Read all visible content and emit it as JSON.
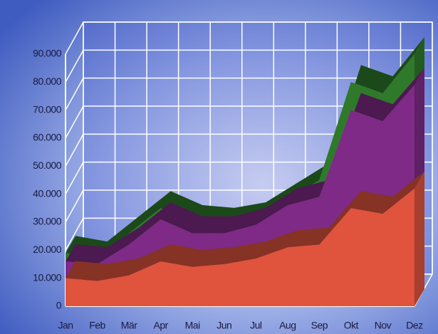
{
  "chart_data": {
    "type": "area3d",
    "categories": [
      "Jan",
      "Feb",
      "Mär",
      "Apr",
      "Mai",
      "Jun",
      "Jul",
      "Aug",
      "Sep",
      "Okt",
      "Nov",
      "Dez"
    ],
    "series": [
      {
        "color": "#e0533d",
        "values": [
          10000,
          9000,
          11000,
          16000,
          14000,
          15000,
          17000,
          21000,
          22000,
          35000,
          33000,
          42000
        ]
      },
      {
        "color": "#7e2a86",
        "values": [
          6000,
          6000,
          11000,
          15000,
          12000,
          11000,
          12000,
          15000,
          17000,
          35000,
          33000,
          37000
        ]
      },
      {
        "color": "#2f7a2a",
        "values": [
          3000,
          2000,
          4000,
          4000,
          4000,
          3000,
          2000,
          2000,
          6000,
          10000,
          10000,
          11000
        ]
      }
    ],
    "stacked": true,
    "ylim": [
      0,
      90000
    ],
    "yticks": [
      0,
      {
        "value": 10000,
        "label": "10.000"
      },
      {
        "value": 20000,
        "label": "20.000"
      },
      {
        "value": 30000,
        "label": "30.000"
      },
      {
        "value": 40000,
        "label": "40.000"
      },
      {
        "value": 50000,
        "label": "50.000"
      },
      {
        "value": 60000,
        "label": "60.000"
      },
      {
        "value": 70000,
        "label": "70.000"
      },
      {
        "value": 80000,
        "label": "80.000"
      },
      {
        "value": 90000,
        "label": "90.000"
      }
    ],
    "grid": true
  }
}
